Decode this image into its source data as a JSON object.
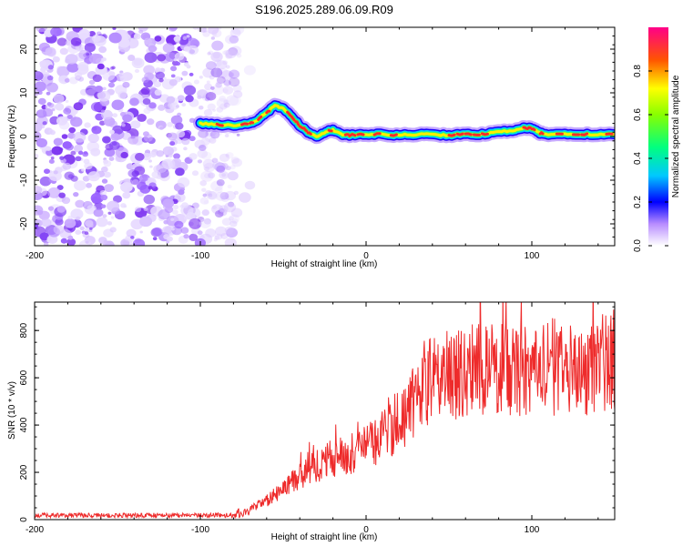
{
  "title": "S196.2025.289.06.09.R09",
  "chart_data": [
    {
      "type": "heatmap",
      "xlabel": "Height of straight line (km)",
      "ylabel": "Frequency (Hz)",
      "xlim": [
        -200,
        150
      ],
      "ylim": [
        -25,
        25
      ],
      "xticks": [
        -200,
        -100,
        0,
        100
      ],
      "yticks": [
        -20,
        -10,
        0,
        10,
        20
      ],
      "colorbar_label": "Normalized spectral amplitude",
      "colorbar_ticks": [
        0.0,
        0.2,
        0.4,
        0.6,
        0.8
      ],
      "colorbar_range": [
        0,
        1
      ],
      "noise_region_x": [
        -200,
        -80
      ],
      "ridge": {
        "x": [
          -100,
          -90,
          -80,
          -70,
          -65,
          -60,
          -55,
          -50,
          -45,
          -40,
          -35,
          -30,
          -25,
          -20,
          -15,
          -10,
          0,
          10,
          20,
          30,
          40,
          50,
          60,
          70,
          80,
          90,
          95,
          100,
          105,
          110,
          120,
          130,
          140,
          150
        ],
        "y": [
          3,
          2.8,
          2.5,
          3,
          4,
          5.5,
          7,
          6.5,
          4.5,
          2.5,
          1,
          0,
          1,
          1.5,
          0.5,
          0.3,
          0.5,
          0.5,
          0.3,
          0.5,
          0.5,
          0.3,
          0.5,
          0.5,
          1,
          1.5,
          2,
          1.8,
          0.8,
          0.5,
          0.5,
          0.5,
          0.5,
          0.5
        ]
      }
    },
    {
      "type": "line",
      "xlabel": "Height of straight line (km)",
      "ylabel": "SNR (10 * v/v)",
      "xlim": [
        -200,
        150
      ],
      "ylim": [
        0,
        920
      ],
      "xticks": [
        -200,
        -100,
        0,
        100
      ],
      "yticks": [
        0,
        200,
        400,
        600,
        800
      ],
      "series_color": "#ee2b2b",
      "trend": {
        "x": [
          -200,
          -100,
          -80,
          -70,
          -60,
          -50,
          -40,
          -30,
          -20,
          -10,
          0,
          10,
          20,
          30,
          40,
          50,
          60,
          70,
          80,
          90,
          100,
          110,
          120,
          130,
          140,
          150
        ],
        "y": [
          18,
          18,
          20,
          40,
          80,
          130,
          180,
          230,
          260,
          280,
          300,
          360,
          420,
          500,
          600,
          610,
          620,
          650,
          640,
          630,
          620,
          650,
          640,
          630,
          660,
          680
        ]
      }
    }
  ]
}
